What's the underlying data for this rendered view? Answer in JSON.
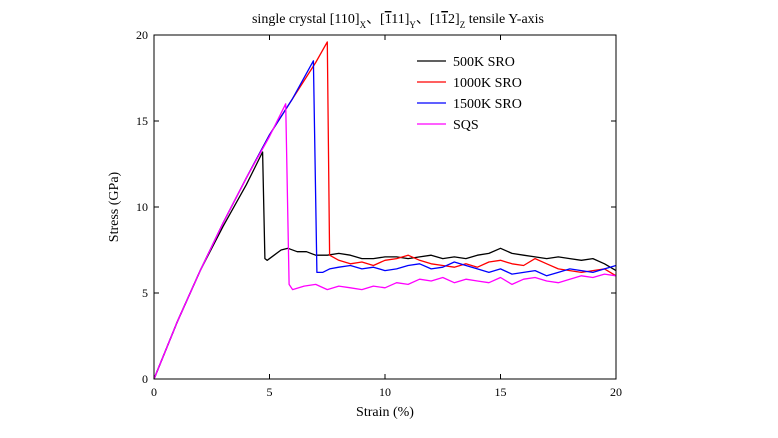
{
  "chart_data": {
    "type": "line",
    "title": {
      "prefix": "single crystal [110]",
      "sub_x": "X",
      "sep1": "、[",
      "bar1": "1",
      "mid1": "11]",
      "sub_y": "Y",
      "sep2": "、[1",
      "bar2": "1",
      "mid2": "2]",
      "sub_z": "Z",
      "suffix": " tensile Y-axis"
    },
    "xlabel": "Strain (%)",
    "ylabel": "Stress (GPa)",
    "xlim": [
      0,
      20
    ],
    "ylim": [
      0,
      20
    ],
    "xticks": [
      0,
      5,
      10,
      15,
      20
    ],
    "yticks": [
      0,
      5,
      10,
      15,
      20
    ],
    "xtick_labels": [
      "0",
      "5",
      "10",
      "15",
      "20"
    ],
    "ytick_labels": [
      "0",
      "5",
      "10",
      "15",
      "20"
    ],
    "legend_position": "top-right",
    "series": [
      {
        "name": "500K SRO",
        "color": "#000000",
        "points": [
          [
            0,
            0
          ],
          [
            1,
            3.3
          ],
          [
            2,
            6.3
          ],
          [
            3,
            8.9
          ],
          [
            4,
            11.3
          ],
          [
            4.7,
            13.2
          ],
          [
            4.8,
            7.0
          ],
          [
            4.9,
            6.9
          ],
          [
            5.2,
            7.2
          ],
          [
            5.5,
            7.5
          ],
          [
            5.8,
            7.6
          ],
          [
            6.2,
            7.4
          ],
          [
            6.6,
            7.4
          ],
          [
            7,
            7.2
          ],
          [
            7.5,
            7.2
          ],
          [
            8,
            7.3
          ],
          [
            8.5,
            7.2
          ],
          [
            9,
            7.0
          ],
          [
            9.5,
            7.0
          ],
          [
            10,
            7.1
          ],
          [
            10.5,
            7.1
          ],
          [
            11,
            7.0
          ],
          [
            11.5,
            7.1
          ],
          [
            12,
            7.2
          ],
          [
            12.5,
            7.0
          ],
          [
            13,
            7.1
          ],
          [
            13.5,
            7.0
          ],
          [
            14,
            7.2
          ],
          [
            14.5,
            7.3
          ],
          [
            15,
            7.6
          ],
          [
            15.5,
            7.3
          ],
          [
            16,
            7.2
          ],
          [
            16.5,
            7.1
          ],
          [
            17,
            7.0
          ],
          [
            17.5,
            7.1
          ],
          [
            18,
            7.0
          ],
          [
            18.5,
            6.9
          ],
          [
            19,
            7.0
          ],
          [
            19.5,
            6.7
          ],
          [
            20,
            6.3
          ]
        ]
      },
      {
        "name": "1000K SRO",
        "color": "#ff0000",
        "points": [
          [
            0,
            0
          ],
          [
            1,
            3.3
          ],
          [
            2,
            6.3
          ],
          [
            3,
            9.1
          ],
          [
            4,
            11.7
          ],
          [
            5,
            14.2
          ],
          [
            6,
            16.3
          ],
          [
            7,
            18.4
          ],
          [
            7.5,
            19.6
          ],
          [
            7.6,
            7.2
          ],
          [
            8,
            6.9
          ],
          [
            8.5,
            6.7
          ],
          [
            9,
            6.8
          ],
          [
            9.5,
            6.6
          ],
          [
            10,
            6.9
          ],
          [
            10.5,
            7.0
          ],
          [
            11,
            7.2
          ],
          [
            11.5,
            6.9
          ],
          [
            12,
            6.7
          ],
          [
            12.5,
            6.6
          ],
          [
            13,
            6.5
          ],
          [
            13.5,
            6.7
          ],
          [
            14,
            6.5
          ],
          [
            14.5,
            6.8
          ],
          [
            15,
            6.9
          ],
          [
            15.5,
            6.7
          ],
          [
            16,
            6.6
          ],
          [
            16.5,
            7.0
          ],
          [
            17,
            6.7
          ],
          [
            17.5,
            6.4
          ],
          [
            18,
            6.3
          ],
          [
            18.5,
            6.2
          ],
          [
            19,
            6.3
          ],
          [
            19.5,
            6.4
          ],
          [
            20,
            6.0
          ]
        ]
      },
      {
        "name": "1500K SRO",
        "color": "#0000ff",
        "points": [
          [
            0,
            0
          ],
          [
            1,
            3.3
          ],
          [
            2,
            6.3
          ],
          [
            3,
            9.1
          ],
          [
            4,
            11.7
          ],
          [
            5,
            14.2
          ],
          [
            6,
            16.3
          ],
          [
            6.9,
            18.5
          ],
          [
            7.05,
            6.2
          ],
          [
            7.3,
            6.2
          ],
          [
            7.6,
            6.4
          ],
          [
            8,
            6.5
          ],
          [
            8.5,
            6.6
          ],
          [
            9,
            6.4
          ],
          [
            9.5,
            6.5
          ],
          [
            10,
            6.3
          ],
          [
            10.5,
            6.4
          ],
          [
            11,
            6.6
          ],
          [
            11.5,
            6.7
          ],
          [
            12,
            6.4
          ],
          [
            12.5,
            6.5
          ],
          [
            13,
            6.8
          ],
          [
            13.5,
            6.6
          ],
          [
            14,
            6.4
          ],
          [
            14.5,
            6.2
          ],
          [
            15,
            6.4
          ],
          [
            15.5,
            6.1
          ],
          [
            16,
            6.2
          ],
          [
            16.5,
            6.3
          ],
          [
            17,
            6.0
          ],
          [
            17.5,
            6.2
          ],
          [
            18,
            6.4
          ],
          [
            18.5,
            6.3
          ],
          [
            19,
            6.2
          ],
          [
            19.5,
            6.4
          ],
          [
            20,
            6.6
          ]
        ]
      },
      {
        "name": "SQS",
        "color": "#ff00ff",
        "points": [
          [
            0,
            0
          ],
          [
            1,
            3.3
          ],
          [
            2,
            6.3
          ],
          [
            3,
            9.1
          ],
          [
            4,
            11.7
          ],
          [
            5,
            14.1
          ],
          [
            5.7,
            16.0
          ],
          [
            5.85,
            5.5
          ],
          [
            6,
            5.2
          ],
          [
            6.5,
            5.4
          ],
          [
            7,
            5.5
          ],
          [
            7.5,
            5.2
          ],
          [
            8,
            5.4
          ],
          [
            8.5,
            5.3
          ],
          [
            9,
            5.2
          ],
          [
            9.5,
            5.4
          ],
          [
            10,
            5.3
          ],
          [
            10.5,
            5.6
          ],
          [
            11,
            5.5
          ],
          [
            11.5,
            5.8
          ],
          [
            12,
            5.7
          ],
          [
            12.5,
            5.9
          ],
          [
            13,
            5.6
          ],
          [
            13.5,
            5.8
          ],
          [
            14,
            5.7
          ],
          [
            14.5,
            5.6
          ],
          [
            15,
            5.9
          ],
          [
            15.5,
            5.5
          ],
          [
            16,
            5.8
          ],
          [
            16.5,
            5.9
          ],
          [
            17,
            5.7
          ],
          [
            17.5,
            5.6
          ],
          [
            18,
            5.8
          ],
          [
            18.5,
            6.0
          ],
          [
            19,
            5.9
          ],
          [
            19.5,
            6.1
          ],
          [
            20,
            6.0
          ]
        ]
      }
    ]
  }
}
